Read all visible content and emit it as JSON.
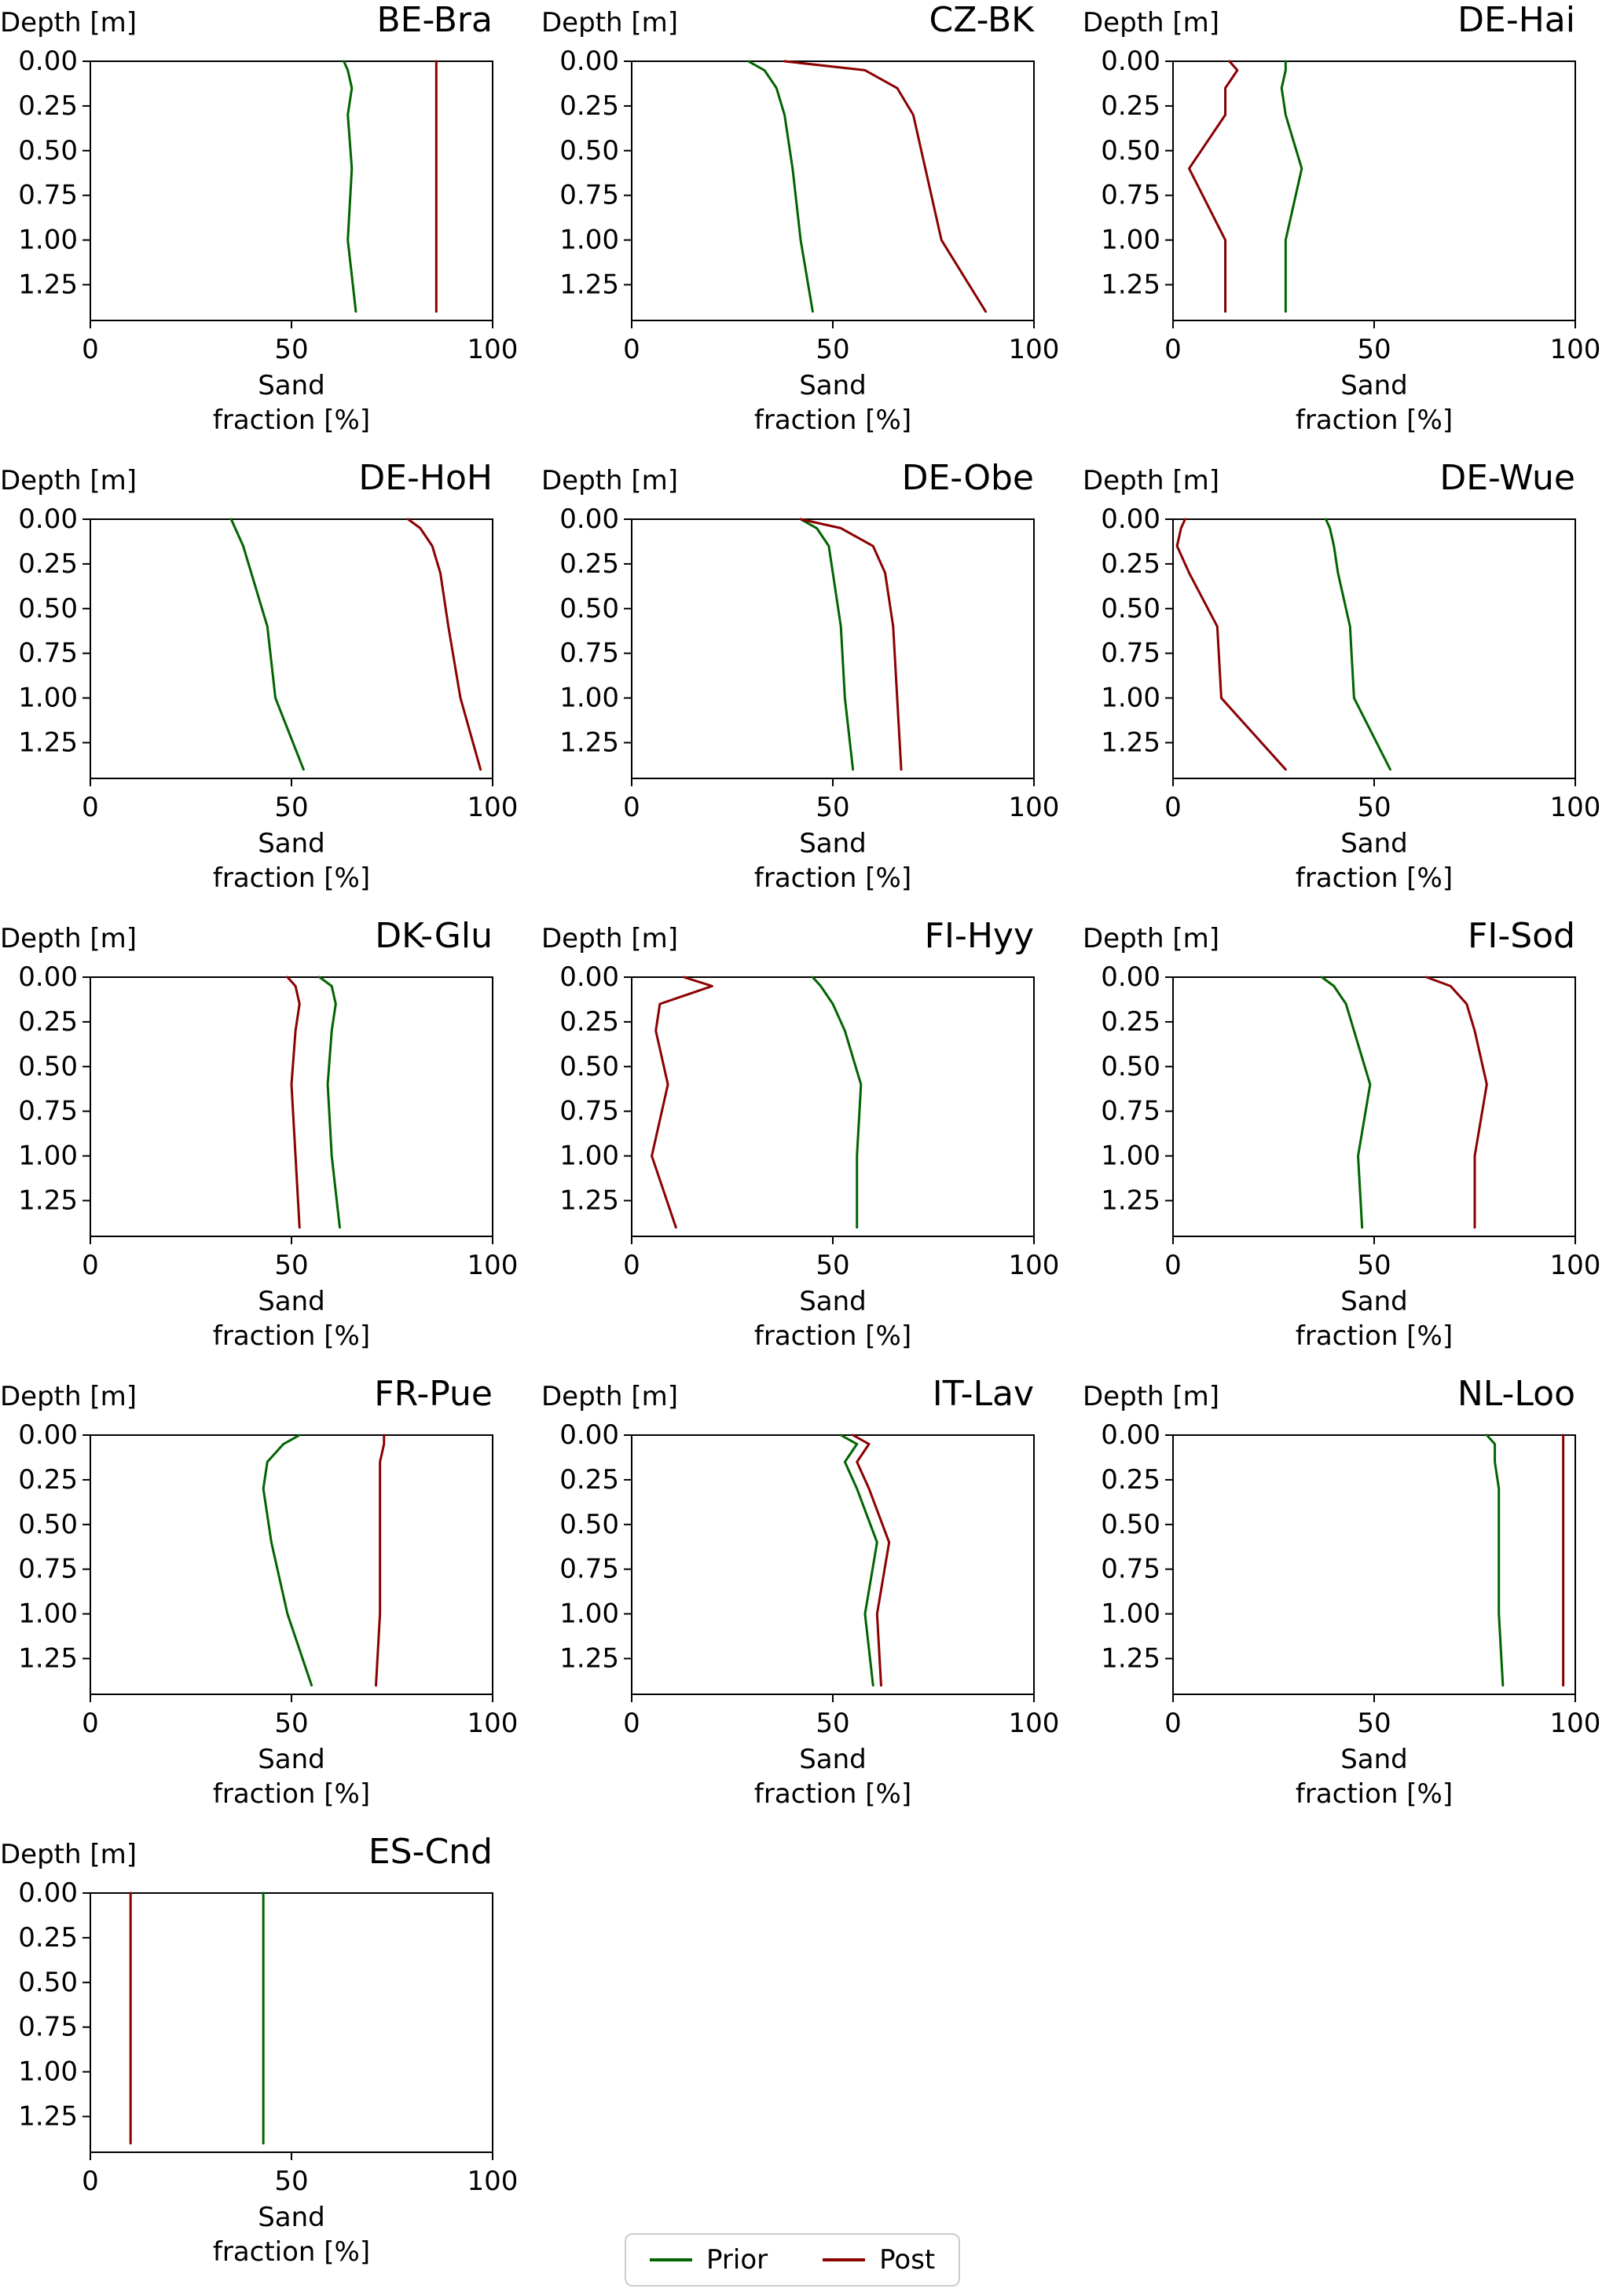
{
  "figure": {
    "ylabel": "Depth [m]",
    "xlabel_line1": "Sand",
    "xlabel_line2": "fraction [%]",
    "colors": {
      "prior": "#006400",
      "post": "#8b0000"
    },
    "legend": [
      {
        "name": "Prior",
        "color": "#006400"
      },
      {
        "name": "Post",
        "color": "#8b0000"
      }
    ]
  },
  "chart_data": [
    {
      "type": "line",
      "title": "BE-Bra",
      "xlabel": "Sand fraction [%]",
      "ylabel": "Depth [m]",
      "xlim": [
        0,
        100
      ],
      "ylim": [
        0,
        1.45
      ],
      "y_inverted": true,
      "xticks": [
        0,
        50,
        100
      ],
      "yticks": [
        0.0,
        0.25,
        0.5,
        0.75,
        1.0,
        1.25
      ],
      "depths": [
        0.0,
        0.05,
        0.15,
        0.3,
        0.6,
        1.0,
        1.4
      ],
      "series": [
        {
          "name": "Prior",
          "color": "#006400",
          "values": [
            63,
            64,
            65,
            64,
            65,
            64,
            66
          ]
        },
        {
          "name": "Post",
          "color": "#8b0000",
          "values": [
            86,
            86,
            86,
            86,
            86,
            86,
            86
          ]
        }
      ]
    },
    {
      "type": "line",
      "title": "CZ-BK",
      "xlabel": "Sand fraction [%]",
      "ylabel": "Depth [m]",
      "xlim": [
        0,
        100
      ],
      "ylim": [
        0,
        1.45
      ],
      "y_inverted": true,
      "xticks": [
        0,
        50,
        100
      ],
      "yticks": [
        0.0,
        0.25,
        0.5,
        0.75,
        1.0,
        1.25
      ],
      "depths": [
        0.0,
        0.05,
        0.15,
        0.3,
        0.6,
        1.0,
        1.4
      ],
      "series": [
        {
          "name": "Prior",
          "color": "#006400",
          "values": [
            29,
            33,
            36,
            38,
            40,
            42,
            45
          ]
        },
        {
          "name": "Post",
          "color": "#8b0000",
          "values": [
            38,
            58,
            66,
            70,
            73,
            77,
            88
          ]
        }
      ]
    },
    {
      "type": "line",
      "title": "DE-Hai",
      "xlabel": "Sand fraction [%]",
      "ylabel": "Depth [m]",
      "xlim": [
        0,
        100
      ],
      "ylim": [
        0,
        1.45
      ],
      "y_inverted": true,
      "xticks": [
        0,
        50,
        100
      ],
      "yticks": [
        0.0,
        0.25,
        0.5,
        0.75,
        1.0,
        1.25
      ],
      "depths": [
        0.0,
        0.05,
        0.15,
        0.3,
        0.6,
        1.0,
        1.4
      ],
      "series": [
        {
          "name": "Prior",
          "color": "#006400",
          "values": [
            28,
            28,
            27,
            28,
            32,
            28,
            28
          ]
        },
        {
          "name": "Post",
          "color": "#8b0000",
          "values": [
            14,
            16,
            13,
            13,
            4,
            13,
            13
          ]
        }
      ]
    },
    {
      "type": "line",
      "title": "DE-HoH",
      "xlabel": "Sand fraction [%]",
      "ylabel": "Depth [m]",
      "xlim": [
        0,
        100
      ],
      "ylim": [
        0,
        1.45
      ],
      "y_inverted": true,
      "xticks": [
        0,
        50,
        100
      ],
      "yticks": [
        0.0,
        0.25,
        0.5,
        0.75,
        1.0,
        1.25
      ],
      "depths": [
        0.0,
        0.05,
        0.15,
        0.3,
        0.6,
        1.0,
        1.4
      ],
      "series": [
        {
          "name": "Prior",
          "color": "#006400",
          "values": [
            35,
            36,
            38,
            40,
            44,
            46,
            53
          ]
        },
        {
          "name": "Post",
          "color": "#8b0000",
          "values": [
            79,
            82,
            85,
            87,
            89,
            92,
            97
          ]
        }
      ]
    },
    {
      "type": "line",
      "title": "DE-Obe",
      "xlabel": "Sand fraction [%]",
      "ylabel": "Depth [m]",
      "xlim": [
        0,
        100
      ],
      "ylim": [
        0,
        1.45
      ],
      "y_inverted": true,
      "xticks": [
        0,
        50,
        100
      ],
      "yticks": [
        0.0,
        0.25,
        0.5,
        0.75,
        1.0,
        1.25
      ],
      "depths": [
        0.0,
        0.05,
        0.15,
        0.3,
        0.6,
        1.0,
        1.4
      ],
      "series": [
        {
          "name": "Prior",
          "color": "#006400",
          "values": [
            42,
            46,
            49,
            50,
            52,
            53,
            55
          ]
        },
        {
          "name": "Post",
          "color": "#8b0000",
          "values": [
            42,
            52,
            60,
            63,
            65,
            66,
            67
          ]
        }
      ]
    },
    {
      "type": "line",
      "title": "DE-Wue",
      "xlabel": "Sand fraction [%]",
      "ylabel": "Depth [m]",
      "xlim": [
        0,
        100
      ],
      "ylim": [
        0,
        1.45
      ],
      "y_inverted": true,
      "xticks": [
        0,
        50,
        100
      ],
      "yticks": [
        0.0,
        0.25,
        0.5,
        0.75,
        1.0,
        1.25
      ],
      "depths": [
        0.0,
        0.05,
        0.15,
        0.3,
        0.6,
        1.0,
        1.4
      ],
      "series": [
        {
          "name": "Prior",
          "color": "#006400",
          "values": [
            38,
            39,
            40,
            41,
            44,
            45,
            54
          ]
        },
        {
          "name": "Post",
          "color": "#8b0000",
          "values": [
            3,
            2,
            1,
            4,
            11,
            12,
            28
          ]
        }
      ]
    },
    {
      "type": "line",
      "title": "DK-Glu",
      "xlabel": "Sand fraction [%]",
      "ylabel": "Depth [m]",
      "xlim": [
        0,
        100
      ],
      "ylim": [
        0,
        1.45
      ],
      "y_inverted": true,
      "xticks": [
        0,
        50,
        100
      ],
      "yticks": [
        0.0,
        0.25,
        0.5,
        0.75,
        1.0,
        1.25
      ],
      "depths": [
        0.0,
        0.05,
        0.15,
        0.3,
        0.6,
        1.0,
        1.4
      ],
      "series": [
        {
          "name": "Prior",
          "color": "#006400",
          "values": [
            57,
            60,
            61,
            60,
            59,
            60,
            62
          ]
        },
        {
          "name": "Post",
          "color": "#8b0000",
          "values": [
            49,
            51,
            52,
            51,
            50,
            51,
            52
          ]
        }
      ]
    },
    {
      "type": "line",
      "title": "FI-Hyy",
      "xlabel": "Sand fraction [%]",
      "ylabel": "Depth [m]",
      "xlim": [
        0,
        100
      ],
      "ylim": [
        0,
        1.45
      ],
      "y_inverted": true,
      "xticks": [
        0,
        50,
        100
      ],
      "yticks": [
        0.0,
        0.25,
        0.5,
        0.75,
        1.0,
        1.25
      ],
      "depths": [
        0.0,
        0.05,
        0.15,
        0.3,
        0.6,
        1.0,
        1.4
      ],
      "series": [
        {
          "name": "Prior",
          "color": "#006400",
          "values": [
            45,
            47,
            50,
            53,
            57,
            56,
            56
          ]
        },
        {
          "name": "Post",
          "color": "#8b0000",
          "values": [
            13,
            20,
            7,
            6,
            9,
            5,
            11
          ]
        }
      ]
    },
    {
      "type": "line",
      "title": "FI-Sod",
      "xlabel": "Sand fraction [%]",
      "ylabel": "Depth [m]",
      "xlim": [
        0,
        100
      ],
      "ylim": [
        0,
        1.45
      ],
      "y_inverted": true,
      "xticks": [
        0,
        50,
        100
      ],
      "yticks": [
        0.0,
        0.25,
        0.5,
        0.75,
        1.0,
        1.25
      ],
      "depths": [
        0.0,
        0.05,
        0.15,
        0.3,
        0.6,
        1.0,
        1.4
      ],
      "series": [
        {
          "name": "Prior",
          "color": "#006400",
          "values": [
            37,
            40,
            43,
            45,
            49,
            46,
            47
          ]
        },
        {
          "name": "Post",
          "color": "#8b0000",
          "values": [
            63,
            69,
            73,
            75,
            78,
            75,
            75
          ]
        }
      ]
    },
    {
      "type": "line",
      "title": "FR-Pue",
      "xlabel": "Sand fraction [%]",
      "ylabel": "Depth [m]",
      "xlim": [
        0,
        100
      ],
      "ylim": [
        0,
        1.45
      ],
      "y_inverted": true,
      "xticks": [
        0,
        50,
        100
      ],
      "yticks": [
        0.0,
        0.25,
        0.5,
        0.75,
        1.0,
        1.25
      ],
      "depths": [
        0.0,
        0.05,
        0.15,
        0.3,
        0.6,
        1.0,
        1.4
      ],
      "series": [
        {
          "name": "Prior",
          "color": "#006400",
          "values": [
            52,
            48,
            44,
            43,
            45,
            49,
            55
          ]
        },
        {
          "name": "Post",
          "color": "#8b0000",
          "values": [
            73,
            73,
            72,
            72,
            72,
            72,
            71
          ]
        }
      ]
    },
    {
      "type": "line",
      "title": "IT-Lav",
      "xlabel": "Sand fraction [%]",
      "ylabel": "Depth [m]",
      "xlim": [
        0,
        100
      ],
      "ylim": [
        0,
        1.45
      ],
      "y_inverted": true,
      "xticks": [
        0,
        50,
        100
      ],
      "yticks": [
        0.0,
        0.25,
        0.5,
        0.75,
        1.0,
        1.25
      ],
      "depths": [
        0.0,
        0.05,
        0.15,
        0.3,
        0.6,
        1.0,
        1.4
      ],
      "series": [
        {
          "name": "Prior",
          "color": "#006400",
          "values": [
            52,
            56,
            53,
            56,
            61,
            58,
            60
          ]
        },
        {
          "name": "Post",
          "color": "#8b0000",
          "values": [
            55,
            59,
            56,
            59,
            64,
            61,
            62
          ]
        }
      ]
    },
    {
      "type": "line",
      "title": "NL-Loo",
      "xlabel": "Sand fraction [%]",
      "ylabel": "Depth [m]",
      "xlim": [
        0,
        100
      ],
      "ylim": [
        0,
        1.45
      ],
      "y_inverted": true,
      "xticks": [
        0,
        50,
        100
      ],
      "yticks": [
        0.0,
        0.25,
        0.5,
        0.75,
        1.0,
        1.25
      ],
      "depths": [
        0.0,
        0.05,
        0.15,
        0.3,
        0.6,
        1.0,
        1.4
      ],
      "series": [
        {
          "name": "Prior",
          "color": "#006400",
          "values": [
            78,
            80,
            80,
            81,
            81,
            81,
            82
          ]
        },
        {
          "name": "Post",
          "color": "#8b0000",
          "values": [
            97,
            97,
            97,
            97,
            97,
            97,
            97
          ]
        }
      ]
    },
    {
      "type": "line",
      "title": "ES-Cnd",
      "xlabel": "Sand fraction [%]",
      "ylabel": "Depth [m]",
      "xlim": [
        0,
        100
      ],
      "ylim": [
        0,
        1.45
      ],
      "y_inverted": true,
      "xticks": [
        0,
        50,
        100
      ],
      "yticks": [
        0.0,
        0.25,
        0.5,
        0.75,
        1.0,
        1.25
      ],
      "depths": [
        0.0,
        0.05,
        0.15,
        0.3,
        0.6,
        1.0,
        1.4
      ],
      "series": [
        {
          "name": "Prior",
          "color": "#006400",
          "values": [
            43,
            43,
            43,
            43,
            43,
            43,
            43
          ]
        },
        {
          "name": "Post",
          "color": "#8b0000",
          "values": [
            10,
            10,
            10,
            10,
            10,
            10,
            10
          ]
        }
      ]
    }
  ]
}
